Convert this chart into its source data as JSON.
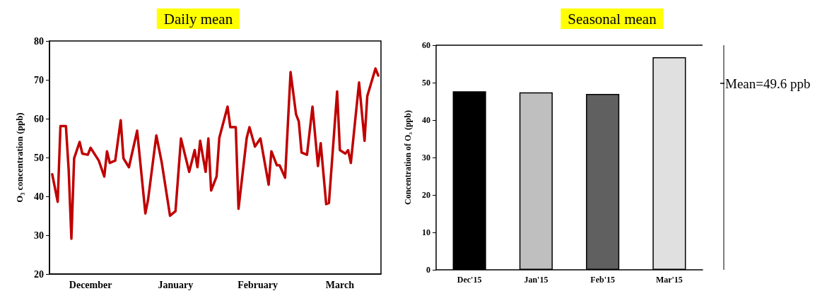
{
  "chart_data": [
    {
      "type": "line",
      "title": "Daily mean",
      "ylabel": "O₃ concentration (ppb)",
      "x": [
        "2015-12-02",
        "2015-12-04",
        "2015-12-05",
        "2015-12-07",
        "2015-12-08",
        "2015-12-09",
        "2015-12-10",
        "2015-12-12",
        "2015-12-13",
        "2015-12-15",
        "2015-12-16",
        "2015-12-19",
        "2015-12-21",
        "2015-12-22",
        "2015-12-23",
        "2015-12-25",
        "2015-12-27",
        "2015-12-28",
        "2015-12-30",
        "2016-01-02",
        "2016-01-05",
        "2016-01-06",
        "2016-01-09",
        "2016-01-11",
        "2016-01-14",
        "2016-01-16",
        "2016-01-18",
        "2016-01-21",
        "2016-01-23",
        "2016-01-24",
        "2016-01-25",
        "2016-01-27",
        "2016-01-28",
        "2016-01-29",
        "2016-01-31",
        "2016-02-01",
        "2016-02-04",
        "2016-02-05",
        "2016-02-07",
        "2016-02-08",
        "2016-02-11",
        "2016-02-12",
        "2016-02-14",
        "2016-02-16",
        "2016-02-19",
        "2016-02-20",
        "2016-02-22",
        "2016-02-23",
        "2016-02-25",
        "2016-02-27",
        "2016-02-29",
        "2016-03-01",
        "2016-03-02",
        "2016-03-04",
        "2016-03-06",
        "2016-03-08",
        "2016-03-09",
        "2016-03-11",
        "2016-03-12",
        "2016-03-15",
        "2016-03-16",
        "2016-03-18",
        "2016-03-19",
        "2016-03-20",
        "2016-03-23",
        "2016-03-25",
        "2016-03-26",
        "2016-03-29",
        "2016-03-30"
      ],
      "series": [
        {
          "color": "#c00000",
          "values": [
            45.7,
            38.6,
            58.1,
            58.1,
            46.9,
            29.1,
            49.8,
            54.0,
            51.0,
            50.7,
            52.5,
            49.2,
            45.1,
            51.6,
            48.6,
            49.2,
            59.6,
            49.8,
            47.5,
            56.9,
            35.6,
            39.2,
            55.7,
            48.6,
            35.0,
            36.2,
            54.9,
            46.3,
            51.9,
            47.5,
            54.3,
            46.3,
            54.9,
            41.5,
            45.1,
            55.1,
            63.1,
            57.8,
            57.8,
            36.8,
            55.1,
            57.8,
            52.8,
            54.9,
            43.0,
            51.6,
            48.0,
            48.0,
            44.8,
            72.0,
            61.1,
            59.3,
            51.3,
            50.7,
            63.1,
            47.8,
            53.7,
            38.0,
            38.3,
            67.0,
            51.9,
            51.0,
            51.9,
            48.6,
            69.3,
            54.3,
            65.8,
            72.9,
            71.1
          ]
        }
      ],
      "xlim": [
        "2015-12-01",
        "2016-03-31"
      ],
      "xticks": [
        {
          "value": "2015-12-16",
          "label": "December"
        },
        {
          "value": "2016-01-16",
          "label": "January"
        },
        {
          "value": "2016-02-15",
          "label": "February"
        },
        {
          "value": "2016-03-16",
          "label": "March"
        }
      ],
      "ylim": [
        20,
        80
      ],
      "yticks": [
        20,
        30,
        40,
        50,
        60,
        70,
        80
      ],
      "grid": false,
      "marker": "none",
      "line_style": "solid"
    },
    {
      "type": "bar",
      "title": "Seasonal mean",
      "ylabel": "Concentration of O₃ (ppb)",
      "categories": [
        "Dec'15",
        "Jan'15",
        "Feb'15",
        "Mar'15"
      ],
      "values": [
        47.7,
        47.4,
        47.0,
        56.8
      ],
      "colors": [
        "#000000",
        "#bfbfbf",
        "#606060",
        "#e0e0e0"
      ],
      "ylim": [
        0,
        60
      ],
      "yticks": [
        0,
        10,
        20,
        30,
        40,
        50,
        60
      ],
      "grid": false,
      "annotations": [
        "Mean=49.6 ppb"
      ]
    }
  ]
}
